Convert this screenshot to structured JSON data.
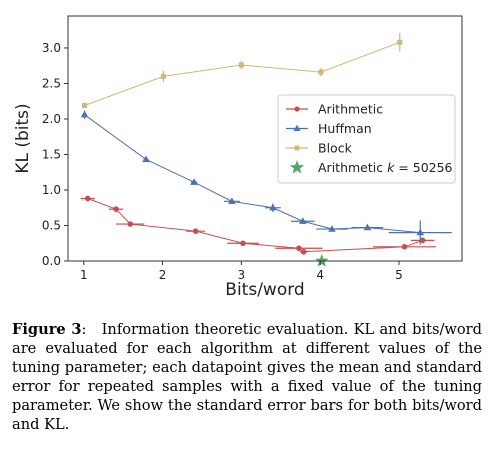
{
  "chart_data": {
    "type": "scatter",
    "xlabel": "Bits/word",
    "ylabel": "KL (bits)",
    "xlim": [
      0.8,
      5.8
    ],
    "ylim": [
      0,
      3.45
    ],
    "x_ticks": [
      1,
      2,
      3,
      4,
      5
    ],
    "x_tick_labels": [
      "1",
      "2",
      "3",
      "4",
      "5"
    ],
    "y_ticks": [
      0.0,
      0.5,
      1.0,
      1.5,
      2.0,
      2.5,
      3.0
    ],
    "y_tick_labels": [
      "0.0",
      "0.5",
      "1.0",
      "1.5",
      "2.0",
      "2.5",
      "3.0"
    ],
    "grid": false,
    "legend_position": "center-right",
    "series": [
      {
        "name": "Arithmetic",
        "color": "#c44e52",
        "marker": "circle",
        "connected": true,
        "points": [
          {
            "x": 1.05,
            "y": 0.88,
            "xerr": 0.09,
            "yerr": 0.04
          },
          {
            "x": 1.41,
            "y": 0.73,
            "xerr": 0.09,
            "yerr": 0.04
          },
          {
            "x": 1.59,
            "y": 0.52,
            "xerr": 0.18,
            "yerr": 0.03
          },
          {
            "x": 2.42,
            "y": 0.42,
            "xerr": 0.12,
            "yerr": 0.02
          },
          {
            "x": 3.02,
            "y": 0.25,
            "xerr": 0.2,
            "yerr": 0.02
          },
          {
            "x": 3.73,
            "y": 0.18,
            "xerr": 0.3,
            "yerr": 0.03
          },
          {
            "x": 3.79,
            "y": 0.13,
            "xerr": 0.05,
            "yerr": 0.03
          },
          {
            "x": 5.07,
            "y": 0.2,
            "xerr": 0.4,
            "yerr": 0.03
          },
          {
            "x": 5.3,
            "y": 0.29,
            "xerr": 0.15,
            "yerr": 0.04
          }
        ]
      },
      {
        "name": "Huffman",
        "color": "#4c72b0",
        "marker": "triangle",
        "connected": true,
        "points": [
          {
            "x": 1.01,
            "y": 2.06,
            "xerr": 0.03,
            "yerr": 0.06
          },
          {
            "x": 1.79,
            "y": 1.43,
            "xerr": 0.03,
            "yerr": 0.03
          },
          {
            "x": 2.4,
            "y": 1.11,
            "xerr": 0.04,
            "yerr": 0.03
          },
          {
            "x": 2.88,
            "y": 0.84,
            "xerr": 0.1,
            "yerr": 0.03
          },
          {
            "x": 3.4,
            "y": 0.75,
            "xerr": 0.1,
            "yerr": 0.06
          },
          {
            "x": 3.78,
            "y": 0.56,
            "xerr": 0.15,
            "yerr": 0.04
          },
          {
            "x": 4.15,
            "y": 0.45,
            "xerr": 0.2,
            "yerr": 0.03
          },
          {
            "x": 4.6,
            "y": 0.47,
            "xerr": 0.2,
            "yerr": 0.03
          },
          {
            "x": 5.27,
            "y": 0.4,
            "xerr": 0.4,
            "yerr": 0.17
          }
        ]
      },
      {
        "name": "Block",
        "color": "#ccb974",
        "marker": "square",
        "connected": true,
        "points": [
          {
            "x": 1.01,
            "y": 2.19,
            "xerr": 0.03,
            "yerr": 0.04
          },
          {
            "x": 2.01,
            "y": 2.6,
            "xerr": 0.03,
            "yerr": 0.08
          },
          {
            "x": 3.0,
            "y": 2.76,
            "xerr": 0.03,
            "yerr": 0.06
          },
          {
            "x": 4.01,
            "y": 2.66,
            "xerr": 0.03,
            "yerr": 0.06
          },
          {
            "x": 5.01,
            "y": 3.08,
            "xerr": 0.03,
            "yerr": 0.13
          }
        ]
      },
      {
        "name": "Arithmetic k = 50256",
        "color": "#55a868",
        "marker": "star",
        "connected": false,
        "points": [
          {
            "x": 4.02,
            "y": 0.0
          }
        ]
      }
    ]
  },
  "caption": {
    "label": "Figure 3",
    "text": "Information theoretic evaluation. KL and bits/word are evaluated for each algorithm at different values of the tuning parameter; each datapoint gives the mean and standard error for repeated samples with a fixed value of the tuning parameter. We show the standard error bars for both bits/word and KL."
  }
}
